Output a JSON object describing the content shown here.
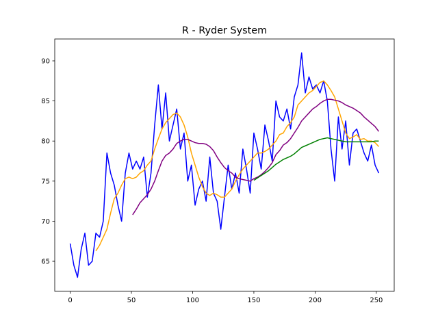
{
  "chart_data": {
    "type": "line",
    "title": "R - Ryder System",
    "x": [
      0,
      3,
      6,
      9,
      12,
      15,
      18,
      21,
      24,
      27,
      30,
      33,
      36,
      39,
      42,
      45,
      48,
      51,
      54,
      57,
      60,
      63,
      66,
      69,
      72,
      75,
      78,
      81,
      84,
      87,
      90,
      93,
      96,
      99,
      102,
      105,
      108,
      111,
      114,
      117,
      120,
      123,
      126,
      129,
      132,
      135,
      138,
      141,
      144,
      147,
      150,
      153,
      156,
      159,
      162,
      165,
      168,
      171,
      174,
      177,
      180,
      183,
      186,
      189,
      192,
      195,
      198,
      201,
      204,
      207,
      210,
      213,
      216,
      219,
      222,
      225,
      228,
      231,
      234,
      237,
      240,
      243,
      246,
      249,
      252
    ],
    "series": [
      {
        "color": "#0000ff",
        "values": [
          67.2,
          64.5,
          63,
          66.5,
          68.5,
          64.5,
          65,
          68.5,
          68,
          70,
          78.5,
          76,
          74.5,
          72,
          70,
          76,
          78.5,
          76.5,
          77.5,
          76.5,
          78,
          73,
          76,
          82,
          87,
          81.5,
          86,
          80,
          82,
          84,
          79,
          81,
          75,
          77,
          72,
          74,
          75,
          72.5,
          78,
          73.5,
          72.5,
          69,
          73,
          77,
          74,
          76,
          73.5,
          79,
          76.5,
          73.5,
          81,
          79,
          76.5,
          82,
          80,
          77.5,
          85,
          83,
          82.5,
          84,
          81.5,
          85.5,
          87,
          91,
          86,
          88,
          86.5,
          87,
          86,
          87.5,
          85,
          79,
          75,
          83,
          79,
          82.5,
          77,
          81,
          81.5,
          80,
          78.5,
          77.5,
          79.5,
          77,
          76
        ]
      },
      {
        "color": "#ffa500",
        "values": [
          null,
          null,
          null,
          null,
          null,
          null,
          null,
          66.3,
          67,
          68,
          69,
          71,
          72.8,
          73.5,
          74.5,
          75.3,
          75.5,
          75.3,
          75.5,
          76,
          76.3,
          77,
          77.5,
          79,
          80.3,
          81.5,
          82.3,
          82.8,
          83.3,
          83.5,
          83,
          82,
          80.5,
          78.5,
          77,
          75.5,
          74.3,
          73.5,
          73.2,
          73.5,
          73.3,
          73,
          73,
          73.5,
          74,
          75,
          75.8,
          76.5,
          77,
          77.5,
          78,
          78.5,
          78.5,
          78.7,
          79,
          79.5,
          80,
          80.8,
          81,
          81.8,
          82.3,
          83,
          84.5,
          85,
          85.5,
          86,
          86.3,
          86.8,
          87.3,
          87.5,
          87,
          86.3,
          85.5,
          84,
          82.5,
          81,
          80.3,
          80.5,
          80.8,
          80.2,
          80.3,
          80,
          80,
          79.8,
          79.3
        ]
      },
      {
        "color": "#800080",
        "values": [
          null,
          null,
          null,
          null,
          null,
          null,
          null,
          null,
          null,
          null,
          null,
          null,
          null,
          null,
          null,
          null,
          null,
          70.8,
          71.5,
          72.3,
          72.8,
          73.3,
          74,
          75,
          76.3,
          77.5,
          78.2,
          78.5,
          79,
          79.7,
          80,
          80.2,
          80.2,
          80,
          79.8,
          79.7,
          79.7,
          79.6,
          79.3,
          78.8,
          78,
          77.3,
          76.7,
          76.3,
          76,
          75.5,
          75.3,
          75.2,
          75.1,
          75,
          75.3,
          75.5,
          75.8,
          76.2,
          76.7,
          77.3,
          78.3,
          78.8,
          79.5,
          79.8,
          80.3,
          81,
          81.7,
          82.5,
          83,
          83.5,
          84,
          84.3,
          84.7,
          85,
          85.2,
          85.2,
          85.1,
          85,
          84.8,
          84.5,
          84.3,
          84.1,
          83.8,
          83.5,
          83,
          82.6,
          82.2,
          81.8,
          81.2
        ]
      },
      {
        "color": "#008000",
        "values": [
          null,
          null,
          null,
          null,
          null,
          null,
          null,
          null,
          null,
          null,
          null,
          null,
          null,
          null,
          null,
          null,
          null,
          null,
          null,
          null,
          null,
          null,
          null,
          null,
          null,
          null,
          null,
          null,
          null,
          null,
          null,
          null,
          null,
          null,
          null,
          null,
          null,
          null,
          null,
          null,
          null,
          null,
          null,
          null,
          null,
          null,
          null,
          null,
          null,
          null,
          75.1,
          75.4,
          75.7,
          76,
          76.3,
          76.7,
          77.1,
          77.4,
          77.7,
          77.9,
          78.1,
          78.4,
          78.8,
          79.2,
          79.4,
          79.6,
          79.8,
          80,
          80.2,
          80.3,
          80.4,
          80.3,
          80.2,
          80.1,
          80,
          79.9,
          79.9,
          79.9,
          79.9,
          79.9,
          79.9,
          79.9,
          79.9,
          80,
          80
        ]
      }
    ],
    "xlim": [
      -12.6,
      264.6
    ],
    "ylim": [
      61.25,
      92.73
    ],
    "xticks": [
      0,
      50,
      100,
      150,
      200,
      250
    ],
    "yticks": [
      65,
      70,
      75,
      80,
      85,
      90
    ]
  }
}
